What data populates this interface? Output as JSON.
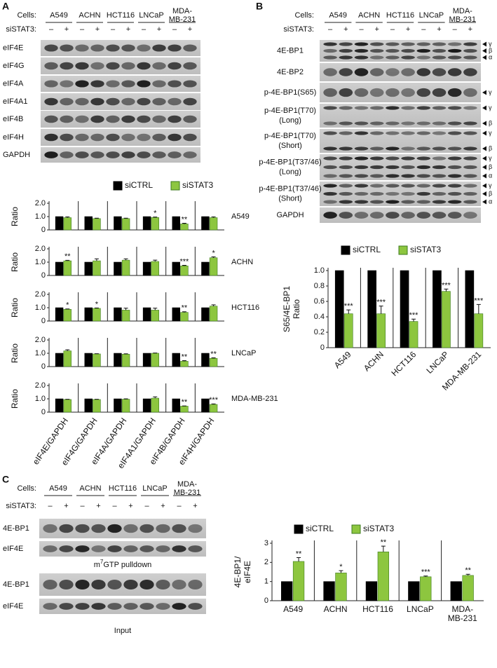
{
  "panels": [
    {
      "letter": "A",
      "cells_label": "Cells:",
      "cell_lines": [
        [
          "A549"
        ],
        [
          "ACHN"
        ],
        [
          "HCT116"
        ],
        [
          "LNCaP"
        ],
        [
          "MDA-",
          "MB-231"
        ]
      ],
      "sirna_label": "siSTAT3:",
      "signs": [
        "–",
        "+"
      ],
      "blots": [
        {
          "label": [
            "eIF4E"
          ]
        },
        {
          "label": [
            "eIF4G"
          ]
        },
        {
          "label": [
            "eIF4A"
          ]
        },
        {
          "label": [
            "eIF4A1"
          ]
        },
        {
          "label": [
            "eIF4B"
          ]
        },
        {
          "label": [
            "eIF4H"
          ]
        },
        {
          "label": [
            "GAPDH"
          ]
        }
      ]
    },
    {
      "letter": "B",
      "cells_label": "Cells:",
      "cell_lines": [
        [
          "A549"
        ],
        [
          "ACHN"
        ],
        [
          "HCT116"
        ],
        [
          "LNCaP"
        ],
        [
          "MDA-",
          "MB-231"
        ]
      ],
      "sirna_label": "siSTAT3:",
      "signs": [
        "–",
        "+"
      ],
      "blots": [
        {
          "label": [
            "4E-BP1"
          ],
          "isoforms": [
            "γ",
            "β",
            "α"
          ]
        },
        {
          "label": [
            "4E-BP2"
          ]
        },
        {
          "label": [
            "p-4E-BP1(S65)"
          ],
          "isoforms": [
            "γ"
          ]
        },
        {
          "label": [
            "p-4E-BP1(T70)",
            "(Long)"
          ],
          "isoforms": [
            "γ",
            "β"
          ]
        },
        {
          "label": [
            "p-4E-BP1(T70)",
            "(Short)"
          ],
          "isoforms": [
            "γ",
            "β"
          ]
        },
        {
          "label": [
            "p-4E-BP1(T37/46)",
            "(Long)"
          ],
          "isoforms": [
            "γ",
            "β",
            "α"
          ]
        },
        {
          "label": [
            "p-4E-BP1(T37/46)",
            "(Short)"
          ],
          "isoforms": [
            "γ",
            "β",
            "α"
          ]
        },
        {
          "label": [
            "GAPDH"
          ]
        }
      ]
    },
    {
      "letter": "C",
      "cells_label": "Cells:",
      "cell_lines": [
        [
          "A549"
        ],
        [
          "ACHN"
        ],
        [
          "HCT116"
        ],
        [
          "LNCaP"
        ],
        [
          "MDA-",
          "MB-231"
        ]
      ],
      "sirna_label": "siSTAT3:",
      "signs": [
        "–",
        "+"
      ],
      "blots": [
        {
          "label": [
            "4E-BP1"
          ]
        },
        {
          "label": [
            "eIF4E"
          ]
        },
        {
          "label": [
            "4E-BP1"
          ]
        },
        {
          "label": [
            "eIF4E"
          ]
        }
      ],
      "captions": [
        [
          "m",
          "7",
          "GTP pulldown"
        ],
        [
          "Input"
        ]
      ]
    }
  ],
  "chart_data": [
    {
      "type": "bar-grid",
      "ylabel": "Ratio",
      "categories": [
        "eIF4E/GAPDH",
        "eIF4G/GAPDH",
        "eIF4A/GAPDH",
        "eIF4A1/GAPDH",
        "eIF4B/GAPDH",
        "eIF4H/GAPDH"
      ],
      "series": [
        {
          "name": "siCTRL",
          "color": "#000000"
        },
        {
          "name": "siSTAT3",
          "color": "#8dc63f"
        }
      ],
      "ylim": [
        0,
        2
      ],
      "yticks": [
        0,
        {
          "value": 1,
          "label": "1.0"
        },
        {
          "value": 2,
          "label": "2.0"
        }
      ],
      "rows": [
        {
          "name": "A549",
          "series": [
            {
              "values": [
                1,
                1,
                1,
                1,
                1,
                1
              ]
            },
            {
              "values": [
                0.92,
                0.85,
                0.85,
                0.93,
                0.45,
                0.92
              ],
              "errors": [
                0.06,
                0.03,
                0.03,
                0.04,
                0.05,
                0.06
              ],
              "stars": [
                null,
                null,
                null,
                "*",
                "**",
                null
              ]
            }
          ]
        },
        {
          "name": "ACHN",
          "series": [
            {
              "values": [
                1,
                1,
                1,
                1,
                1,
                1
              ]
            },
            {
              "values": [
                1.1,
                1.1,
                1.15,
                1.05,
                0.72,
                1.33
              ],
              "errors": [
                0.04,
                0.15,
                0.1,
                0.1,
                0.04,
                0.07
              ],
              "stars": [
                "**",
                null,
                null,
                null,
                "***",
                "*"
              ]
            }
          ]
        },
        {
          "name": "HCT116",
          "series": [
            {
              "values": [
                1,
                1,
                1,
                1,
                1,
                1
              ]
            },
            {
              "values": [
                0.88,
                0.95,
                0.82,
                0.82,
                0.65,
                1.12
              ],
              "errors": [
                0.03,
                0.03,
                0.15,
                0.15,
                0.05,
                0.1
              ],
              "stars": [
                "*",
                "*",
                null,
                null,
                "**",
                null
              ]
            }
          ]
        },
        {
          "name": "LNCaP",
          "series": [
            {
              "values": [
                1,
                1,
                1,
                1,
                1,
                1
              ]
            },
            {
              "values": [
                1.18,
                0.95,
                0.93,
                1.0,
                0.4,
                0.62
              ],
              "errors": [
                0.08,
                0.02,
                0.03,
                0.02,
                0.05,
                0.04
              ],
              "stars": [
                null,
                null,
                null,
                null,
                "**",
                "**"
              ]
            }
          ]
        },
        {
          "name": "MDA-MB-231",
          "series": [
            {
              "values": [
                1,
                1,
                1,
                1,
                1,
                1
              ]
            },
            {
              "values": [
                0.95,
                0.95,
                0.97,
                1.05,
                0.45,
                0.58
              ],
              "errors": [
                0.02,
                0.02,
                0.03,
                0.1,
                0.02,
                0.04
              ],
              "stars": [
                null,
                null,
                null,
                null,
                "**",
                "***"
              ]
            }
          ]
        }
      ]
    },
    {
      "type": "bar",
      "ylabel": [
        "S65/4E-BP1",
        "Ratio"
      ],
      "categories": [
        [
          "A549"
        ],
        [
          "ACHN"
        ],
        [
          "HCT116"
        ],
        [
          "LNCaP"
        ],
        [
          "MDA-MB-231"
        ]
      ],
      "ylim": [
        0,
        1
      ],
      "yticks": [
        0,
        0.2,
        0.4,
        0.6,
        0.8,
        {
          "value": 1,
          "label": "1.0"
        }
      ],
      "series": [
        {
          "name": "siCTRL",
          "color": "#000000",
          "values": [
            1,
            1,
            1,
            1,
            1
          ]
        },
        {
          "name": "siSTAT3",
          "color": "#8dc63f",
          "values": [
            0.44,
            0.44,
            0.34,
            0.73,
            0.44
          ],
          "errors": [
            0.05,
            0.1,
            0.03,
            0.03,
            0.12
          ],
          "stars": [
            "***",
            "***",
            "***",
            "***",
            "***"
          ]
        }
      ]
    },
    {
      "type": "bar",
      "ylabel": [
        "4E-BP1/",
        "eIF4E"
      ],
      "categories": [
        [
          "A549"
        ],
        [
          "ACHN"
        ],
        [
          "HCT116"
        ],
        [
          "LNCaP"
        ],
        [
          "MDA-",
          "MB-231"
        ]
      ],
      "ylim": [
        0,
        3
      ],
      "yticks": [
        0,
        1,
        2,
        3
      ],
      "series": [
        {
          "name": "siCTRL",
          "color": "#000000",
          "values": [
            1,
            1,
            1,
            1,
            1
          ]
        },
        {
          "name": "siSTAT3",
          "color": "#8dc63f",
          "values": [
            2.05,
            1.45,
            2.55,
            1.25,
            1.32
          ],
          "errors": [
            0.2,
            0.12,
            0.3,
            0.04,
            0.06
          ],
          "stars": [
            "**",
            "*",
            "**",
            "***",
            "**"
          ]
        }
      ]
    }
  ]
}
